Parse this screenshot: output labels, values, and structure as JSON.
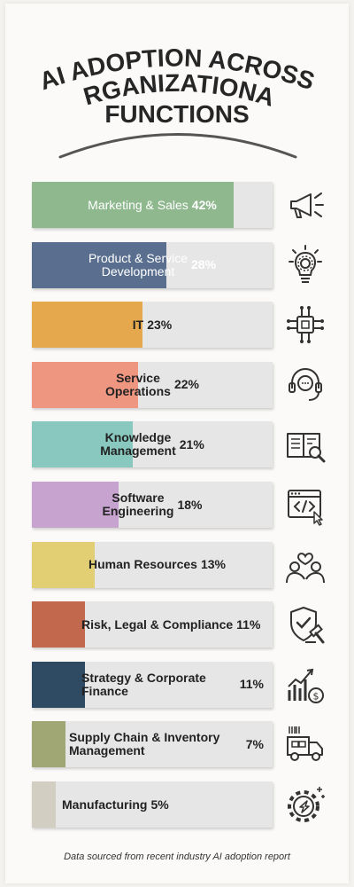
{
  "title_lines": [
    "AI ADOPTION ACROSS",
    "ORGANIZATIONAL",
    "FUNCTIONS"
  ],
  "footnote": "Data sourced from recent industry AI adoption report",
  "chart_data": {
    "type": "bar",
    "orientation": "horizontal",
    "unit": "%",
    "xlim": [
      0,
      100
    ],
    "categories": [
      "Marketing & Sales",
      "Product & Service Development",
      "IT",
      "Service Operations",
      "Knowledge Management",
      "Software Engineering",
      "Human Resources",
      "Risk, Legal & Compliance",
      "Strategy & Corporate Finance",
      "Supply Chain & Inventory Management",
      "Manufacturing"
    ],
    "values": [
      42,
      28,
      23,
      22,
      21,
      18,
      13,
      11,
      11,
      7,
      5
    ],
    "value_labels": [
      "42%",
      "28%",
      "23%",
      "22%",
      "21%",
      "18%",
      "13%",
      "11%",
      "11%",
      "7%",
      "5%"
    ],
    "colors": [
      "#8fb88e",
      "#5a6f8f",
      "#e6a84d",
      "#ef9680",
      "#88c8be",
      "#c7a3cf",
      "#e2cf74",
      "#c2694d",
      "#2f4a63",
      "#a1a675",
      "#d3cec2"
    ],
    "icons": [
      "megaphone-icon",
      "lightbulb-gear-icon",
      "chip-icon",
      "headset-chat-icon",
      "book-magnifier-icon",
      "code-window-icon",
      "people-heart-icon",
      "shield-gavel-icon",
      "chart-dollar-icon",
      "delivery-truck-icon",
      "gear-sparkle-icon"
    ]
  }
}
